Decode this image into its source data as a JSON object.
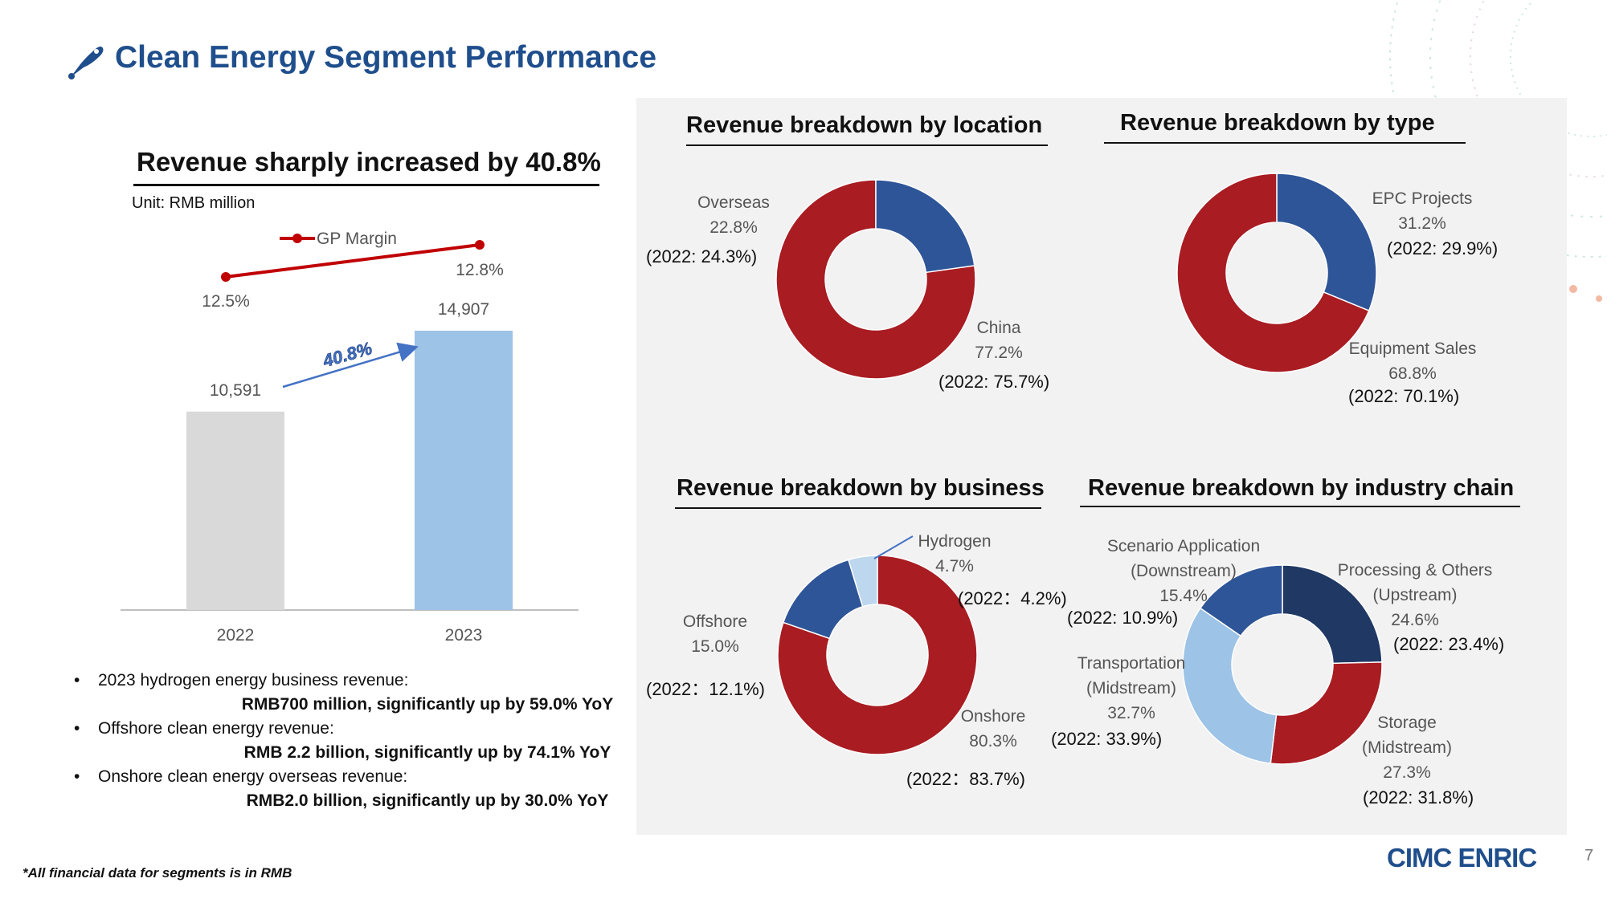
{
  "page": {
    "title": "Clean Energy Segment Performance",
    "footnote": "*All financial data for segments is in RMB",
    "logo_text": "CIMC ENRIC",
    "page_number": "7",
    "title_icon": "pen-nib-icon"
  },
  "colors": {
    "red": "#A81C22",
    "blue": "#2E5597",
    "light_blue": "#9DC3E6",
    "navy": "#203864",
    "grey_bar": "#D9D9D9",
    "bar_blue": "#9DC3E6",
    "gp_line": "#C00000",
    "arrow": "#4472C4"
  },
  "bar_section": {
    "title": "Revenue sharply increased by 40.8%",
    "unit": "Unit: RMB million",
    "growth_label": "40.8%",
    "legend_gp": "GP Margin"
  },
  "chart_data": [
    {
      "type": "bar",
      "title": "Revenue sharply increased by 40.8%",
      "unit": "RMB million",
      "categories": [
        "2022",
        "2023"
      ],
      "values": [
        10591,
        14907
      ],
      "value_labels": [
        "10,591",
        "14,907"
      ],
      "line_series": {
        "name": "GP Margin",
        "values": [
          12.5,
          12.8
        ],
        "labels": [
          "12.5%",
          "12.8%"
        ]
      },
      "growth": "40.8%"
    },
    {
      "type": "pie",
      "title": "Revenue breakdown by location",
      "slices": [
        {
          "name": "China",
          "value": 77.2,
          "label": "77.2%",
          "prev": "(2022: 75.7%)",
          "color": "#A81C22"
        },
        {
          "name": "Overseas",
          "value": 22.8,
          "label": "22.8%",
          "prev": "(2022: 24.3%)",
          "color": "#2E5597"
        }
      ]
    },
    {
      "type": "pie",
      "title": "Revenue breakdown by type",
      "slices": [
        {
          "name": "EPC Projects",
          "value": 31.2,
          "label": "31.2%",
          "prev": "(2022: 29.9%)",
          "color": "#2E5597"
        },
        {
          "name": "Equipment Sales",
          "value": 68.8,
          "label": "68.8%",
          "prev": "(2022: 70.1%)",
          "color": "#A81C22"
        }
      ]
    },
    {
      "type": "pie",
      "title": "Revenue breakdown by business",
      "slices": [
        {
          "name": "Onshore",
          "value": 80.3,
          "label": "80.3%",
          "prev": "(2022：83.7%)",
          "color": "#A81C22"
        },
        {
          "name": "Offshore",
          "value": 15.0,
          "label": "15.0%",
          "prev": "(2022：12.1%)",
          "color": "#2E5597"
        },
        {
          "name": "Hydrogen",
          "value": 4.7,
          "label": "4.7%",
          "prev": "(2022：4.2%)",
          "color": "#BDD7EE"
        }
      ]
    },
    {
      "type": "pie",
      "title": "Revenue breakdown by industry chain",
      "slices": [
        {
          "name": "Processing & Others (Upstream)",
          "value": 24.6,
          "label": "24.6%",
          "prev": "(2022: 23.4%)",
          "color": "#203864"
        },
        {
          "name": "Storage (Midstream)",
          "value": 27.3,
          "label": "27.3%",
          "prev": "(2022: 31.8%)",
          "color": "#A81C22"
        },
        {
          "name": "Transportation (Midstream)",
          "value": 32.7,
          "label": "32.7%",
          "prev": "(2022: 33.9%)",
          "color": "#9DC3E6"
        },
        {
          "name": "Scenario Application (Downstream)",
          "value": 15.4,
          "label": "15.4%",
          "prev": "(2022: 10.9%)",
          "color": "#2E5597"
        }
      ]
    }
  ],
  "donut_labels": {
    "loc_overseas": [
      "Overseas",
      "22.8%"
    ],
    "loc_china": [
      "China",
      "77.2%"
    ],
    "type_epc": [
      "EPC Projects",
      "31.2%"
    ],
    "type_equip": [
      "Equipment Sales",
      "68.8%"
    ],
    "bus_hydrogen": [
      "Hydrogen",
      "4.7%"
    ],
    "bus_offshore": [
      "Offshore",
      "15.0%"
    ],
    "bus_onshore": [
      "Onshore",
      "80.3%"
    ],
    "ind_scenario": [
      "Scenario Application",
      "(Downstream)",
      "15.4%"
    ],
    "ind_processing": [
      "Processing & Others",
      "(Upstream)",
      "24.6%"
    ],
    "ind_transport": [
      "Transportation",
      "(Midstream)",
      "32.7%"
    ],
    "ind_storage": [
      "Storage",
      "(Midstream)",
      "27.3%"
    ]
  },
  "bullets": [
    {
      "head": "2023 hydrogen energy business revenue:",
      "detail": "RMB700 million, significantly up by 59.0% YoY"
    },
    {
      "head": "Offshore clean energy revenue:",
      "detail": "RMB 2.2 billion, significantly up by 74.1% YoY"
    },
    {
      "head": "Onshore clean energy overseas revenue:",
      "detail": "RMB2.0 billion, significantly up by 30.0% YoY"
    }
  ]
}
